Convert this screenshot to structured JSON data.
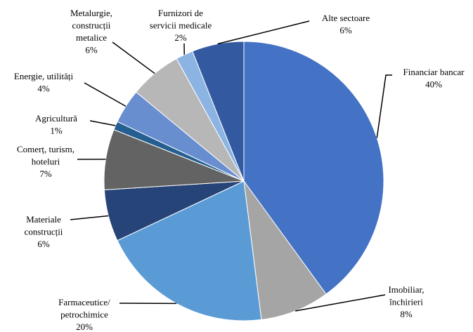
{
  "chart_data": {
    "type": "pie",
    "categories": [
      "Financiar bancar",
      "Imobiliar,\nînchirieri",
      "Farmaceutice/\npetrochimice",
      "Materiale\nconstrucții",
      "Comerț, turism,\nhoteluri",
      "Agricultură",
      "Energie, utilități",
      "Metalurgie,\nconstrucții\nmetalice",
      "Furnizori de\nservicii medicale",
      "Alte sectoare"
    ],
    "values": [
      40,
      8,
      20,
      6,
      7,
      1,
      4,
      6,
      2,
      6
    ],
    "value_labels": [
      "40%",
      "8%",
      "20%",
      "6%",
      "7%",
      "1%",
      "4%",
      "6%",
      "2%",
      "6%"
    ],
    "colors": [
      "#4472c4",
      "#a5a5a5",
      "#5b9bd5",
      "#264478",
      "#636363",
      "#255e91",
      "#698ed0",
      "#b7b7b7",
      "#8cb4e2",
      "#335aa1"
    ]
  }
}
